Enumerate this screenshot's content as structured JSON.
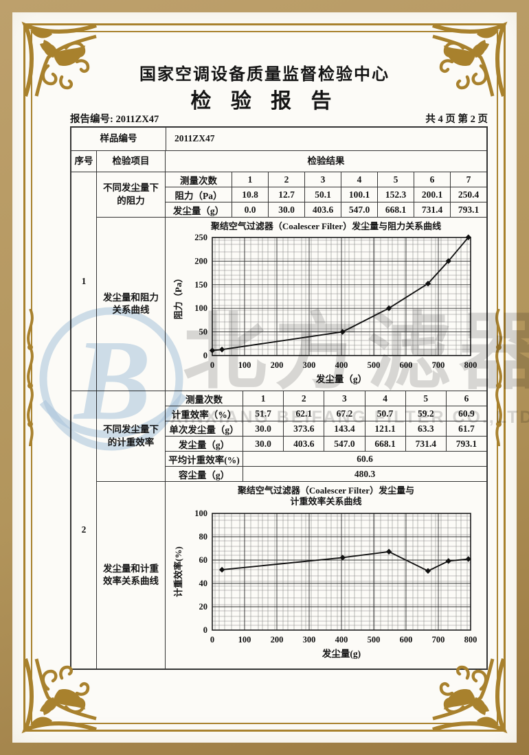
{
  "page": {
    "center_name": "国家空调设备质量监督检验中心",
    "report_title": "检  验  报  告",
    "report_no": "报告编号: 2011ZX47",
    "page_info": "共 4 页 第 2 页"
  },
  "sample": {
    "label": "样品编号",
    "value": "2011ZX47"
  },
  "table_header": {
    "seq": "序号",
    "item": "检验项目",
    "result": "检验结果"
  },
  "section1": {
    "seq": "1",
    "item1": "不同发尘量下的阻力",
    "item2": "发尘量和阻力 关系曲线",
    "sub_table": {
      "row_labels": [
        "测量次数",
        "阻力（Pa）",
        "发尘量（g）"
      ],
      "rows": [
        [
          "1",
          "2",
          "3",
          "4",
          "5",
          "6",
          "7"
        ],
        [
          "10.8",
          "12.7",
          "50.1",
          "100.1",
          "152.3",
          "200.1",
          "250.4"
        ],
        [
          "0.0",
          "30.0",
          "403.6",
          "547.0",
          "668.1",
          "731.4",
          "793.1"
        ]
      ]
    }
  },
  "section2": {
    "seq": "2",
    "item1": "不同发尘量下的计重效率",
    "item2": "发尘量和计重效率关系曲线",
    "sub_table": {
      "row_labels": [
        "测量次数",
        "计重效率（%）",
        "单次发尘量（g）",
        "发尘量（g）"
      ],
      "rows": [
        [
          "1",
          "2",
          "3",
          "4",
          "5",
          "6"
        ],
        [
          "51.7",
          "62.1",
          "67.2",
          "50.7",
          "59.2",
          "60.9"
        ],
        [
          "30.0",
          "373.6",
          "143.4",
          "121.1",
          "63.3",
          "61.7"
        ],
        [
          "30.0",
          "403.6",
          "547.0",
          "668.1",
          "731.4",
          "793.1"
        ]
      ],
      "summary": [
        {
          "label": "平均计重效率(%)",
          "value": "60.6"
        },
        {
          "label": "容尘量（g）",
          "value": "480.3"
        }
      ]
    }
  },
  "chart_data": [
    {
      "type": "line",
      "title": "聚结空气过滤器（Coalescer Filter）发尘量与阻力关系曲线",
      "xlabel": "发尘量（g）",
      "ylabel": "阻力（Pa）",
      "x": [
        0,
        30,
        403.6,
        547,
        668.1,
        731.4,
        793.1
      ],
      "y": [
        10.8,
        12.7,
        50.1,
        100.1,
        152.3,
        200.1,
        250.4
      ],
      "xlim": [
        0,
        800
      ],
      "ylim": [
        0,
        250
      ],
      "xticks": [
        0,
        100,
        200,
        300,
        400,
        500,
        600,
        700,
        800
      ],
      "yticks": [
        0,
        50,
        100,
        150,
        200,
        250
      ],
      "grid": true,
      "marker": "diamond",
      "legend": "none"
    },
    {
      "type": "line",
      "title": "聚结空气过滤器（Coalescer Filter）发尘量与",
      "title2": "计重效率关系曲线",
      "xlabel": "发尘量(g)",
      "ylabel": "计重效率(%)",
      "x": [
        30,
        403.6,
        547,
        668.1,
        731.4,
        793.1
      ],
      "y": [
        51.7,
        62.1,
        67.2,
        50.7,
        59.2,
        60.9
      ],
      "xlim": [
        0,
        800
      ],
      "ylim": [
        0,
        100
      ],
      "xticks": [
        0,
        100,
        200,
        300,
        400,
        500,
        600,
        700,
        800
      ],
      "yticks": [
        0,
        20,
        40,
        60,
        80,
        100
      ],
      "grid": true,
      "marker": "diamond",
      "legend": "none"
    }
  ],
  "watermark": {
    "logo_letter": "B",
    "big_text": "北方滤器",
    "company": "XINXIANG BEIFANG FILTER CO.,LTD."
  },
  "frame": {
    "gold": "#a8812d",
    "band": "#b2955c",
    "paper": "#fcfbf7",
    "wm_blue": "#c2d7ea"
  }
}
